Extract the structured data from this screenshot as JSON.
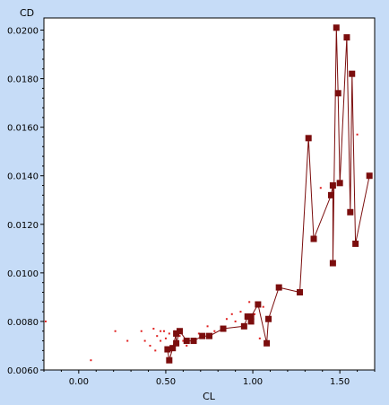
{
  "chart_data": {
    "type": "scatter",
    "title": "",
    "xlabel": "CL",
    "ylabel": "CD",
    "xlim": [
      -0.2,
      1.7
    ],
    "ylim": [
      0.006,
      0.0205
    ],
    "x_ticks": [
      0.0,
      0.5,
      1.0,
      1.5
    ],
    "x_tick_labels": [
      "0.00",
      "0.50",
      "1.00",
      "1.50"
    ],
    "y_ticks": [
      0.006,
      0.008,
      0.01,
      0.012,
      0.014,
      0.016,
      0.018,
      0.02
    ],
    "y_tick_labels": [
      "0.0060",
      "0.0080",
      "0.0100",
      "0.0120",
      "0.0140",
      "0.0160",
      "0.0180",
      "0.0200"
    ],
    "grid": false,
    "legend": "none",
    "colors": {
      "series": "#7b0d0d",
      "points": "#e02020",
      "background": "#c6dcf7",
      "plot_area": "#ffffff"
    },
    "series": [
      {
        "marker": "square",
        "connected": true,
        "points": [
          [
            0.51,
            0.00685
          ],
          [
            0.52,
            0.0064
          ],
          [
            0.54,
            0.0069
          ],
          [
            0.56,
            0.0075
          ],
          [
            0.56,
            0.0071
          ],
          [
            0.58,
            0.0076
          ],
          [
            0.62,
            0.0072
          ],
          [
            0.66,
            0.0072
          ],
          [
            0.71,
            0.0074
          ],
          [
            0.75,
            0.0074
          ],
          [
            0.83,
            0.0077
          ],
          [
            0.95,
            0.0078
          ],
          [
            0.97,
            0.0082
          ],
          [
            0.99,
            0.008
          ],
          [
            0.99,
            0.0082
          ],
          [
            1.03,
            0.0087
          ],
          [
            1.08,
            0.0071
          ],
          [
            1.09,
            0.0081
          ],
          [
            1.15,
            0.0094
          ],
          [
            1.27,
            0.0092
          ],
          [
            1.32,
            0.01555
          ],
          [
            1.35,
            0.0114
          ],
          [
            1.45,
            0.0132
          ],
          [
            1.46,
            0.0136
          ],
          [
            1.46,
            0.0104
          ],
          [
            1.48,
            0.0201
          ],
          [
            1.49,
            0.0174
          ],
          [
            1.5,
            0.0137
          ],
          [
            1.54,
            0.0197
          ],
          [
            1.56,
            0.0125
          ],
          [
            1.57,
            0.0182
          ],
          [
            1.59,
            0.0112
          ],
          [
            1.67,
            0.014
          ]
        ]
      },
      {
        "marker": "dot",
        "connected": false,
        "points": [
          [
            -0.19,
            0.008
          ],
          [
            0.07,
            0.0064
          ],
          [
            0.21,
            0.0076
          ],
          [
            0.28,
            0.0072
          ],
          [
            0.36,
            0.0076
          ],
          [
            0.38,
            0.0072
          ],
          [
            0.41,
            0.007
          ],
          [
            0.43,
            0.0077
          ],
          [
            0.44,
            0.0068
          ],
          [
            0.45,
            0.0074
          ],
          [
            0.47,
            0.0076
          ],
          [
            0.47,
            0.0072
          ],
          [
            0.49,
            0.0076
          ],
          [
            0.5,
            0.0073
          ],
          [
            0.52,
            0.0075
          ],
          [
            0.53,
            0.0069
          ],
          [
            0.55,
            0.0076
          ],
          [
            0.58,
            0.0074
          ],
          [
            0.6,
            0.0072
          ],
          [
            0.62,
            0.007
          ],
          [
            0.69,
            0.0075
          ],
          [
            0.74,
            0.0078
          ],
          [
            0.78,
            0.0076
          ],
          [
            0.85,
            0.0081
          ],
          [
            0.88,
            0.0083
          ],
          [
            0.9,
            0.008
          ],
          [
            0.93,
            0.0084
          ],
          [
            0.96,
            0.0082
          ],
          [
            0.98,
            0.0088
          ],
          [
            1.01,
            0.0083
          ],
          [
            1.04,
            0.0073
          ],
          [
            1.06,
            0.0086
          ],
          [
            1.39,
            0.0135
          ],
          [
            1.6,
            0.0157
          ]
        ]
      }
    ]
  }
}
